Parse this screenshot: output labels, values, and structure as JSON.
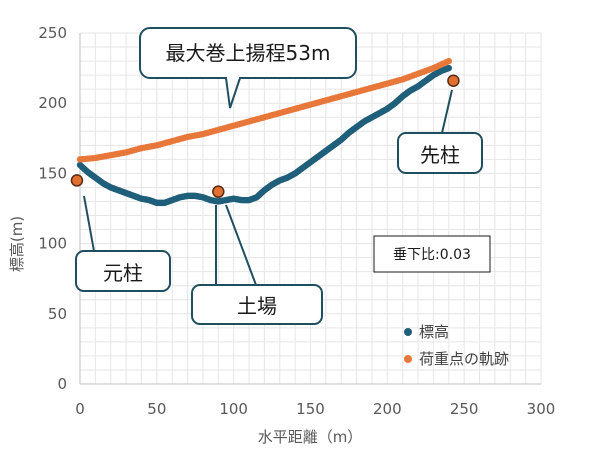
{
  "chart_data": {
    "type": "scatter",
    "xlabel": "水平距離（m）",
    "ylabel": "標高(m)",
    "xlim": [
      0,
      300
    ],
    "ylim": [
      0,
      250
    ],
    "xticks": [
      0,
      50,
      100,
      150,
      200,
      250,
      300
    ],
    "yticks": [
      0,
      50,
      100,
      150,
      200,
      250
    ],
    "grid": true,
    "legend_position": "bottom-right",
    "series": [
      {
        "name": "標高",
        "color": "#1f5f7a",
        "points": [
          [
            0,
            156
          ],
          [
            5,
            151
          ],
          [
            10,
            147
          ],
          [
            15,
            143
          ],
          [
            20,
            140
          ],
          [
            25,
            138
          ],
          [
            30,
            136
          ],
          [
            35,
            134
          ],
          [
            40,
            132
          ],
          [
            45,
            131
          ],
          [
            50,
            129
          ],
          [
            55,
            129
          ],
          [
            60,
            131
          ],
          [
            65,
            133
          ],
          [
            70,
            134
          ],
          [
            75,
            134
          ],
          [
            80,
            133
          ],
          [
            85,
            131
          ],
          [
            90,
            130
          ],
          [
            95,
            131
          ],
          [
            100,
            132
          ],
          [
            105,
            131
          ],
          [
            110,
            131
          ],
          [
            115,
            133
          ],
          [
            120,
            138
          ],
          [
            125,
            142
          ],
          [
            130,
            145
          ],
          [
            135,
            147
          ],
          [
            140,
            150
          ],
          [
            145,
            154
          ],
          [
            150,
            158
          ],
          [
            155,
            162
          ],
          [
            160,
            166
          ],
          [
            165,
            170
          ],
          [
            170,
            174
          ],
          [
            175,
            179
          ],
          [
            180,
            183
          ],
          [
            185,
            187
          ],
          [
            190,
            190
          ],
          [
            195,
            193
          ],
          [
            200,
            196
          ],
          [
            205,
            200
          ],
          [
            210,
            205
          ],
          [
            215,
            209
          ],
          [
            220,
            212
          ],
          [
            225,
            216
          ],
          [
            230,
            220
          ],
          [
            235,
            223
          ],
          [
            240,
            225
          ]
        ]
      },
      {
        "name": "荷重点の軌跡",
        "color": "#e8773a",
        "points": [
          [
            0,
            160
          ],
          [
            10,
            161
          ],
          [
            20,
            163
          ],
          [
            30,
            165
          ],
          [
            40,
            168
          ],
          [
            50,
            170
          ],
          [
            60,
            173
          ],
          [
            70,
            176
          ],
          [
            80,
            178
          ],
          [
            90,
            181
          ],
          [
            100,
            184
          ],
          [
            110,
            187
          ],
          [
            120,
            190
          ],
          [
            130,
            193
          ],
          [
            140,
            196
          ],
          [
            150,
            199
          ],
          [
            160,
            202
          ],
          [
            170,
            205
          ],
          [
            180,
            208
          ],
          [
            190,
            211
          ],
          [
            200,
            214
          ],
          [
            210,
            217
          ],
          [
            220,
            221
          ],
          [
            230,
            225
          ],
          [
            240,
            230
          ]
        ]
      }
    ],
    "markers": [
      {
        "label": "元柱",
        "x": -2,
        "y": 145
      },
      {
        "label": "土場",
        "x": 90,
        "y": 137
      },
      {
        "label": "先柱",
        "x": 243,
        "y": 216
      }
    ],
    "annotations": [
      {
        "text": "最大巻上揚程53m"
      },
      {
        "text": "垂下比:0.03"
      }
    ]
  },
  "colors": {
    "axis": "#bfbfbf",
    "grid": "#e6e6e6",
    "marker_fill": "#e0702f",
    "marker_stroke": "#5a2a12",
    "callout_stroke": "#1f4e5f"
  }
}
